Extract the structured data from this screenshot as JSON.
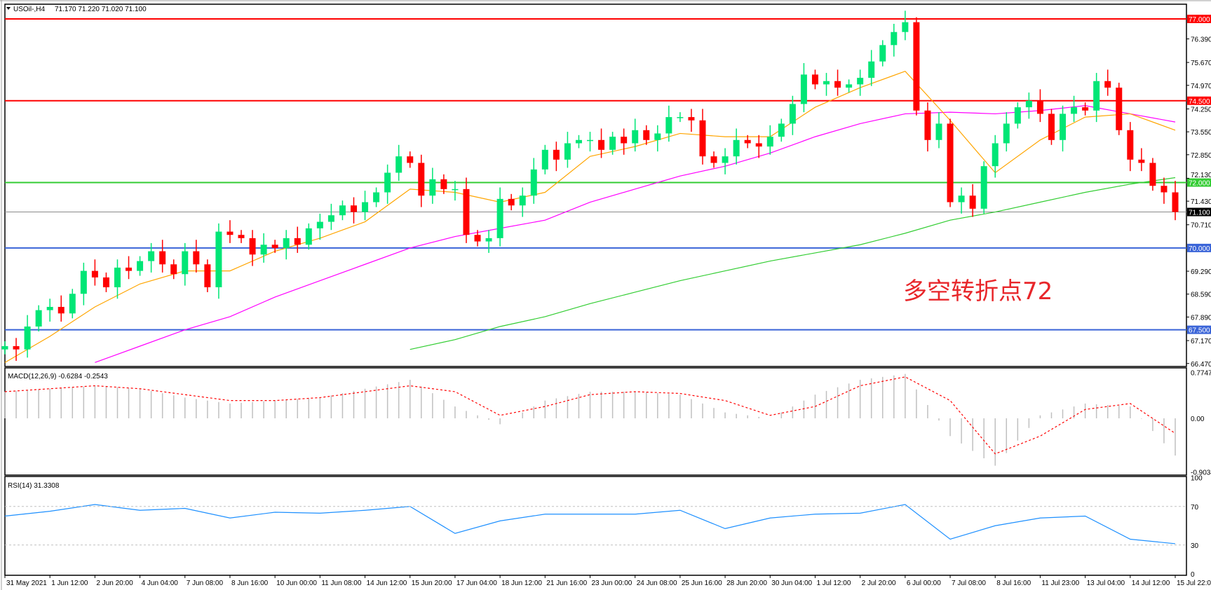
{
  "header": {
    "symbol": "USOil-,H4",
    "ohlc": "71.170 71.220 71.020 71.100"
  },
  "annotation": "多空转折点72",
  "colors": {
    "bull": "#00e676",
    "bear": "#ff0000",
    "ma_fast": "#ffa500",
    "ma_mid": "#ff00ff",
    "ma_slow": "#32cd32",
    "resistance": "#ff0000",
    "pivot": "#33cc33",
    "support": "#3a64d8",
    "current": "#000000",
    "macd_hist": "#c0c0c0",
    "macd_signal": "#ff0000",
    "rsi": "#1e90ff"
  },
  "chart_data": [
    {
      "type": "candlestick",
      "title": "USOil-,H4",
      "ylim": [
        66.47,
        77.45
      ],
      "y_ticks": [
        "76.390",
        "75.670",
        "74.970",
        "74.250",
        "73.550",
        "72.850",
        "72.130",
        "71.430",
        "70.710",
        "69.290",
        "68.590",
        "67.890",
        "67.170",
        "66.470"
      ],
      "x_ticks": [
        "31 May 2021",
        "1 Jun 12:00",
        "2 Jun 20:00",
        "4 Jun 04:00",
        "7 Jun 08:00",
        "8 Jun 16:00",
        "10 Jun 00:00",
        "11 Jun 08:00",
        "14 Jun 12:00",
        "15 Jun 20:00",
        "17 Jun 04:00",
        "18 Jun 12:00",
        "21 Jun 16:00",
        "23 Jun 00:00",
        "24 Jun 08:00",
        "25 Jun 16:00",
        "28 Jun 20:00",
        "30 Jun 04:00",
        "1 Jul 12:00",
        "2 Jul 20:00",
        "6 Jul 00:00",
        "7 Jul 08:00",
        "8 Jul 16:00",
        "11 Jul 23:00",
        "13 Jul 04:00",
        "14 Jul 12:00",
        "15 Jul 22:00"
      ],
      "close": [
        67.0,
        66.9,
        67.6,
        68.1,
        68.2,
        68.0,
        68.6,
        69.3,
        69.1,
        68.8,
        69.4,
        69.3,
        69.6,
        69.9,
        69.5,
        69.2,
        69.9,
        69.5,
        68.8,
        70.5,
        70.4,
        70.3,
        69.8,
        70.1,
        70.0,
        70.3,
        70.1,
        70.6,
        70.8,
        71.0,
        71.3,
        71.1,
        71.4,
        71.7,
        72.3,
        72.8,
        72.6,
        71.6,
        72.1,
        71.8,
        71.8,
        70.4,
        70.2,
        70.3,
        71.5,
        71.3,
        71.6,
        72.4,
        73.0,
        72.7,
        73.2,
        73.3,
        73.3,
        73.0,
        73.4,
        73.2,
        73.6,
        73.3,
        73.5,
        74.0,
        74.0,
        73.9,
        72.8,
        72.6,
        72.8,
        73.3,
        73.2,
        73.1,
        73.4,
        73.8,
        74.4,
        75.3,
        75.0,
        75.1,
        74.9,
        75.0,
        75.2,
        75.7,
        76.2,
        76.6,
        76.9,
        74.2,
        73.3,
        73.8,
        71.4,
        71.6,
        71.2,
        72.5,
        73.2,
        73.8,
        74.3,
        74.5,
        74.1,
        73.3,
        74.1,
        74.3,
        74.2,
        75.1,
        74.9,
        73.6,
        72.7,
        72.6,
        71.9,
        71.7,
        71.1
      ],
      "ma_fast": [
        66.5,
        67.3,
        68.2,
        68.9,
        69.3,
        69.3,
        69.9,
        70.3,
        70.8,
        71.8,
        71.7,
        71.4,
        71.7,
        72.8,
        73.1,
        73.5,
        73.4,
        73.4,
        74.3,
        74.9,
        75.4,
        73.9,
        72.3,
        73.3,
        74.0,
        74.1,
        73.6
      ],
      "ma_mid": [
        null,
        null,
        66.5,
        67.0,
        67.5,
        67.9,
        68.5,
        69.0,
        69.5,
        70.0,
        70.35,
        70.6,
        70.85,
        71.4,
        71.8,
        72.2,
        72.5,
        72.9,
        73.4,
        73.8,
        74.1,
        74.15,
        74.1,
        74.2,
        74.35,
        74.1,
        73.85
      ],
      "ma_slow": [
        null,
        null,
        null,
        null,
        null,
        null,
        null,
        null,
        null,
        66.9,
        67.2,
        67.6,
        67.9,
        68.3,
        68.65,
        69.0,
        69.3,
        69.6,
        69.85,
        70.1,
        70.45,
        70.85,
        71.1,
        71.4,
        71.7,
        71.95,
        72.15
      ],
      "levels": [
        {
          "value": 77.0,
          "label": "77.000",
          "kind": "resistance"
        },
        {
          "value": 74.5,
          "label": "74.500",
          "kind": "resistance"
        },
        {
          "value": 72.0,
          "label": "72.000",
          "kind": "pivot"
        },
        {
          "value": 71.1,
          "label": "71.100",
          "kind": "current"
        },
        {
          "value": 70.0,
          "label": "70.000",
          "kind": "support"
        },
        {
          "value": 67.5,
          "label": "67.500",
          "kind": "support"
        }
      ]
    },
    {
      "type": "bar",
      "title": "MACD(12,26,9) -0.6284 -0.2543",
      "ylim": [
        -0.9034,
        0.7747
      ],
      "y_ticks": [
        "0.7747",
        "0.00",
        "-0.9034"
      ],
      "histogram": [
        0.45,
        0.5,
        0.55,
        0.5,
        0.35,
        0.25,
        0.3,
        0.35,
        0.5,
        0.65,
        0.2,
        -0.1,
        0.3,
        0.45,
        0.45,
        0.4,
        0.1,
        0.0,
        0.4,
        0.65,
        0.75,
        -0.3,
        -0.8,
        0.05,
        0.25,
        0.2,
        -0.6284
      ],
      "signal": [
        0.45,
        0.5,
        0.55,
        0.5,
        0.4,
        0.3,
        0.3,
        0.35,
        0.45,
        0.55,
        0.45,
        0.05,
        0.2,
        0.4,
        0.45,
        0.42,
        0.3,
        0.05,
        0.2,
        0.55,
        0.7,
        0.3,
        -0.6,
        -0.3,
        0.15,
        0.25,
        -0.2543
      ]
    },
    {
      "type": "line",
      "title": "RSI(14) 31.3308",
      "ylim": [
        0,
        100
      ],
      "y_ticks": [
        "100",
        "70",
        "30",
        "0"
      ],
      "values": [
        60,
        65,
        72,
        66,
        68,
        58,
        64,
        63,
        66,
        70,
        42,
        55,
        62,
        62,
        62,
        66,
        47,
        58,
        62,
        63,
        72,
        36,
        50,
        58,
        60,
        36,
        31.33
      ]
    }
  ]
}
